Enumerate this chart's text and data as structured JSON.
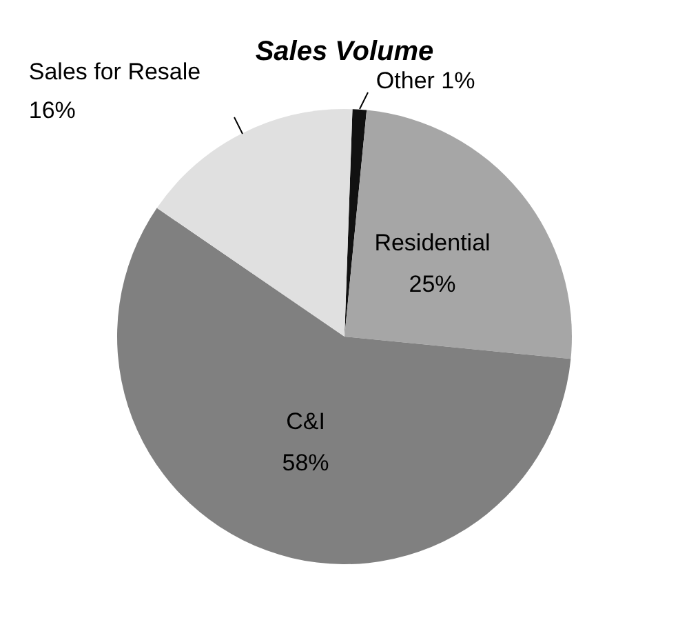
{
  "chart_data": {
    "type": "pie",
    "title": "Sales Volume",
    "categories": [
      "Other",
      "Residential",
      "C&I",
      "Sales for Resale"
    ],
    "values": [
      1,
      25,
      58,
      16
    ],
    "value_labels": [
      "1%",
      "25%",
      "58%",
      "16%"
    ],
    "colors": [
      "#111111",
      "#a6a6a6",
      "#808080",
      "#e0e0e0"
    ],
    "legend": false
  }
}
